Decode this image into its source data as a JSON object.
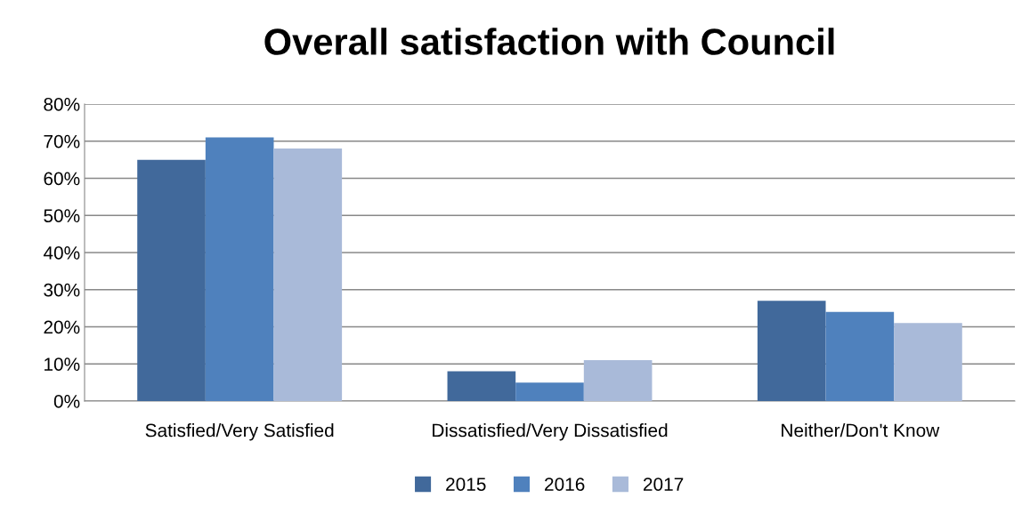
{
  "chart_data": {
    "type": "bar",
    "title": "Overall satisfaction with Council",
    "categories": [
      "Satisfied/Very Satisfied",
      "Dissatisfied/Very Dissatisfied",
      "Neither/Don't Know"
    ],
    "series": [
      {
        "name": "2015",
        "color": "#41699b",
        "values": [
          65,
          8,
          27
        ]
      },
      {
        "name": "2016",
        "color": "#4f81bd",
        "values": [
          71,
          5,
          24
        ]
      },
      {
        "name": "2017",
        "color": "#a9bad9",
        "values": [
          68,
          11,
          21
        ]
      }
    ],
    "ylim": [
      0,
      80
    ],
    "yticks": [
      {
        "value": 0,
        "label": "0%"
      },
      {
        "value": 10,
        "label": "10%"
      },
      {
        "value": 20,
        "label": "20%"
      },
      {
        "value": 30,
        "label": "30%"
      },
      {
        "value": 40,
        "label": "40%"
      },
      {
        "value": 50,
        "label": "50%"
      },
      {
        "value": 60,
        "label": "60%"
      },
      {
        "value": 70,
        "label": "70%"
      },
      {
        "value": 80,
        "label": "80%"
      }
    ],
    "grid": "y",
    "legend": "bottom"
  }
}
